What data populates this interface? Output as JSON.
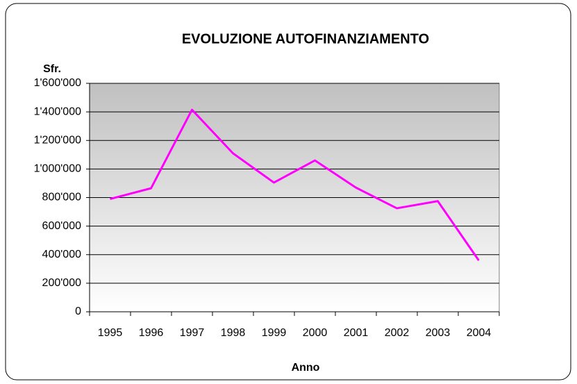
{
  "chart_data": {
    "type": "line",
    "title": "EVOLUZIONE AUTOFINANZIAMENTO",
    "y_label": "Sfr.",
    "x_label": "Anno",
    "categories": [
      "1995",
      "1996",
      "1997",
      "1998",
      "1999",
      "2000",
      "2001",
      "2002",
      "2003",
      "2004"
    ],
    "series": [
      {
        "name": "Autofinanziamento",
        "color": "#ff00ff",
        "values": [
          790000,
          865000,
          1415000,
          1110000,
          905000,
          1060000,
          870000,
          725000,
          775000,
          360000
        ]
      }
    ],
    "ylim": [
      0,
      1600000
    ],
    "yticks": [
      0,
      {
        "value": 200000,
        "label": "200'000"
      },
      {
        "value": 400000,
        "label": "400'000"
      },
      {
        "value": 600000,
        "label": "600'000"
      },
      {
        "value": 800000,
        "label": "800'000"
      },
      {
        "value": 1000000,
        "label": "1'000'000"
      },
      {
        "value": 1200000,
        "label": "1'200'000"
      },
      {
        "value": 1400000,
        "label": "1'400'000"
      },
      {
        "value": 1600000,
        "label": "1'600'000"
      }
    ],
    "grid": true
  }
}
